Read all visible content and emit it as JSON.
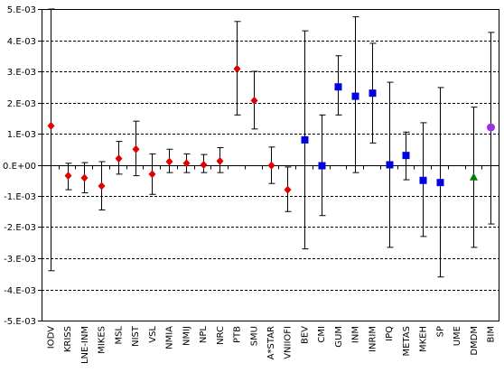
{
  "chart_data": {
    "type": "scatter",
    "title": "",
    "xlabel": "",
    "ylabel": "",
    "categories": [
      "IODV",
      "KRISS",
      "LNE-INM",
      "MIKES",
      "MSL",
      "NIST",
      "VSL",
      "NMIA",
      "NMIJ",
      "NPL",
      "NRC",
      "PTB",
      "SMU",
      "A*STAR",
      "VNIIOFI",
      "BEV",
      "CMI",
      "GUM",
      "INM",
      "INRIM",
      "IPQ",
      "METAS",
      "MKEH",
      "SP",
      "UME",
      "DMDM",
      "BIM"
    ],
    "ylim": [
      -0.005,
      0.005
    ],
    "yticks": [
      0.005,
      0.004,
      0.003,
      0.002,
      0.001,
      0,
      -0.001,
      -0.002,
      -0.003,
      -0.004,
      -0.005
    ],
    "ytick_labels": [
      "5.E-03",
      "4.E-03",
      "3.E-03",
      "2.E-03",
      "1.E-03",
      "0.E+00",
      "-1.E-03",
      "-2.E-03",
      "-3.E-03",
      "-4.E-03",
      "-5.E-03"
    ],
    "grid": true,
    "series": [
      {
        "color": "#e00000",
        "marker": "diamond",
        "points": [
          {
            "x": "IODV",
            "y": 0.00125,
            "low": -0.0034,
            "high": 0.005
          },
          {
            "x": "KRISS",
            "y": -0.00035,
            "low": -0.0008,
            "high": 5e-05
          },
          {
            "x": "LNE-INM",
            "y": -0.00042,
            "low": -0.0009,
            "high": 7e-05
          },
          {
            "x": "MIKES",
            "y": -0.00068,
            "low": -0.00145,
            "high": 0.0001
          },
          {
            "x": "MSL",
            "y": 0.0002,
            "low": -0.0003,
            "high": 0.00075
          },
          {
            "x": "NIST",
            "y": 0.0005,
            "low": -0.00035,
            "high": 0.0014
          },
          {
            "x": "VSL",
            "y": -0.0003,
            "low": -0.00095,
            "high": 0.00035
          },
          {
            "x": "NMIA",
            "y": 0.0001,
            "low": -0.00025,
            "high": 0.0005
          },
          {
            "x": "NMIJ",
            "y": 5e-05,
            "low": -0.00025,
            "high": 0.00035
          },
          {
            "x": "NPL",
            "y": 0.0,
            "low": -0.00025,
            "high": 0.00033
          },
          {
            "x": "NRC",
            "y": 0.00012,
            "low": -0.00025,
            "high": 0.00055
          },
          {
            "x": "PTB",
            "y": 0.00308,
            "low": 0.0016,
            "high": 0.0046
          },
          {
            "x": "SMU",
            "y": 0.00206,
            "low": 0.00115,
            "high": 0.003
          },
          {
            "x": "A*STAR",
            "y": -2e-05,
            "low": -0.0006,
            "high": 0.00057
          },
          {
            "x": "VNIIOFI",
            "y": -0.0008,
            "low": -0.0015,
            "high": -7e-05
          }
        ]
      },
      {
        "color": "#0000e0",
        "marker": "square",
        "points": [
          {
            "x": "BEV",
            "y": 0.0008,
            "low": -0.0027,
            "high": 0.0043
          },
          {
            "x": "CMI",
            "y": -3e-05,
            "low": -0.00163,
            "high": 0.0016
          },
          {
            "x": "GUM",
            "y": 0.0025,
            "low": 0.0016,
            "high": 0.0035
          },
          {
            "x": "INM",
            "y": 0.0022,
            "low": -0.00025,
            "high": 0.00475
          },
          {
            "x": "INRIM",
            "y": 0.0023,
            "low": 0.0007,
            "high": 0.0039
          },
          {
            "x": "IPQ",
            "y": 0.0,
            "low": -0.00265,
            "high": 0.00265
          },
          {
            "x": "METAS",
            "y": 0.0003,
            "low": -0.00048,
            "high": 0.00105
          },
          {
            "x": "MKEH",
            "y": -0.0005,
            "low": -0.0023,
            "high": 0.00135
          },
          {
            "x": "SP",
            "y": -0.00057,
            "low": -0.0036,
            "high": 0.00248
          }
        ]
      },
      {
        "color": "#008000",
        "marker": "triangle",
        "points": [
          {
            "x": "DMDM",
            "y": -0.0004,
            "low": -0.00265,
            "high": 0.00185
          }
        ]
      },
      {
        "color": "#a030e0",
        "marker": "circle",
        "points": [
          {
            "x": "BIM",
            "y": 0.0012,
            "low": -0.0019,
            "high": 0.00425
          }
        ]
      }
    ]
  }
}
